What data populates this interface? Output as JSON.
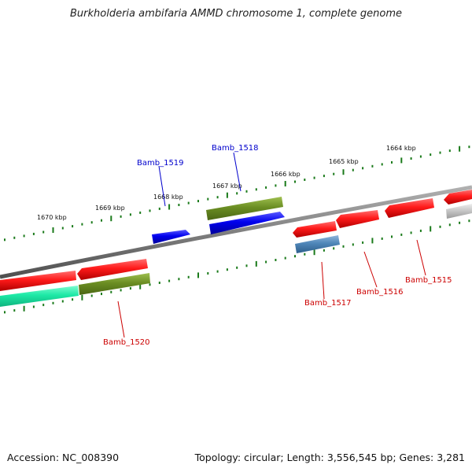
{
  "title": "Burkholderia ambifaria AMMD chromosome 1, complete genome",
  "footer": {
    "accession": "Accession: NC_008390",
    "summary": "Topology: circular; Length: 3,556,545 bp; Genes: 3,281"
  },
  "ticks": [
    "1664 kbp",
    "1665 kbp",
    "1666 kbp",
    "1667 kbp",
    "1668 kbp",
    "1669 kbp",
    "1670 kbp"
  ],
  "genes": [
    {
      "label": "Bamb_1515",
      "color": "#cc0000"
    },
    {
      "label": "Bamb_1516",
      "color": "#cc0000"
    },
    {
      "label": "Bamb_1517",
      "color": "#cc0000"
    },
    {
      "label": "Bamb_1518",
      "color": "#0000cc"
    },
    {
      "label": "Bamb_1519",
      "color": "#0000cc"
    },
    {
      "label": "Bamb_1520",
      "color": "#cc0000"
    }
  ],
  "colors": {
    "backbone": "#808080",
    "tick_marks": "#1a7a1a",
    "cds_forward": "#ff1a1a",
    "cds_reverse": "#0000ee",
    "gene_olive": "#6b8e23",
    "gene_teal": "#1de9a6",
    "gene_steel": "#4f86b8",
    "gene_grey": "#c8c8c8"
  }
}
